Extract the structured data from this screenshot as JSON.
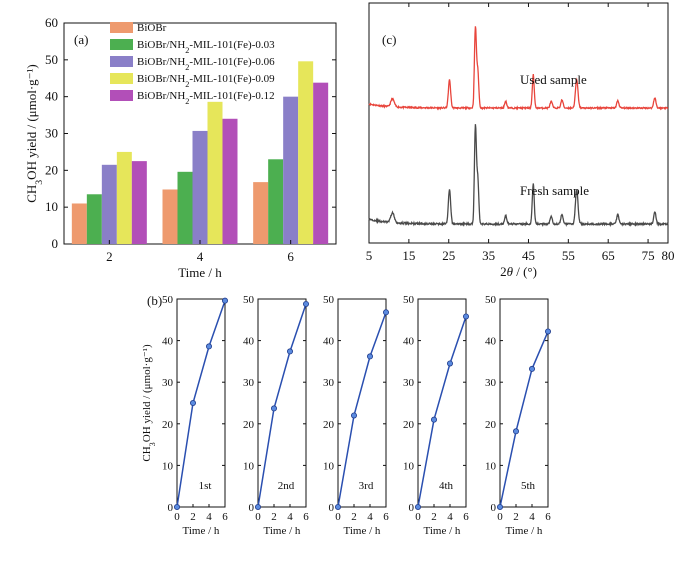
{
  "chart_data": [
    {
      "panel": "(a)",
      "type": "bar",
      "categories": [
        "2",
        "4",
        "6"
      ],
      "xlabel": "Time / h",
      "ylabel": "CH3OH yield / (μmol·g⁻¹)",
      "ylim": [
        0,
        60
      ],
      "yticks": [
        0,
        10,
        20,
        30,
        40,
        50,
        60
      ],
      "legend_position": "top-left",
      "series": [
        {
          "name": "BiOBr",
          "color": "#EE9A6E",
          "values": [
            11.0,
            14.8,
            16.8
          ]
        },
        {
          "name": "BiOBr/NH2-MIL-101(Fe)-0.03",
          "color": "#4CAF50",
          "values": [
            13.5,
            19.6,
            23.0
          ]
        },
        {
          "name": "BiOBr/NH2-MIL-101(Fe)-0.06",
          "color": "#8A7FC8",
          "values": [
            21.5,
            30.7,
            40.0
          ]
        },
        {
          "name": "BiOBr/NH2-MIL-101(Fe)-0.09",
          "color": "#E6E65A",
          "values": [
            25.0,
            38.6,
            49.6
          ]
        },
        {
          "name": "BiOBr/NH2-MIL-101(Fe)-0.12",
          "color": "#B24FB8",
          "values": [
            22.5,
            34.0,
            43.8
          ]
        }
      ]
    },
    {
      "panel": "(b)",
      "type": "line",
      "ylabel": "CH3OH yield / (μmol·g⁻¹)",
      "xlabel": "Time / h",
      "ylim": [
        0,
        50
      ],
      "xlim": [
        0,
        6
      ],
      "yticks": [
        0,
        10,
        20,
        30,
        40,
        50
      ],
      "xticks": [
        0,
        2,
        4,
        6
      ],
      "color": "#2A4FB0",
      "cycles": [
        {
          "label": "1st",
          "x": [
            0,
            2,
            4,
            6
          ],
          "y": [
            0,
            25.0,
            38.6,
            49.6
          ]
        },
        {
          "label": "2nd",
          "x": [
            0,
            2,
            4,
            6
          ],
          "y": [
            0,
            23.7,
            37.4,
            48.8
          ]
        },
        {
          "label": "3rd",
          "x": [
            0,
            2,
            4,
            6
          ],
          "y": [
            0,
            22.0,
            36.2,
            46.8
          ]
        },
        {
          "label": "4th",
          "x": [
            0,
            2,
            4,
            6
          ],
          "y": [
            0,
            21.0,
            34.5,
            45.8
          ]
        },
        {
          "label": "5th",
          "x": [
            0,
            2,
            4,
            6
          ],
          "y": [
            0,
            18.2,
            33.2,
            42.2
          ]
        }
      ]
    },
    {
      "panel": "(c)",
      "type": "line",
      "xlabel": "2θ / (°)",
      "xlim": [
        5,
        80
      ],
      "xticks": [
        5,
        15,
        25,
        35,
        45,
        55,
        65,
        75,
        80
      ],
      "grid": false,
      "peaks": [
        {
          "pos": 10.9,
          "h": 0.1,
          "w": 0.6
        },
        {
          "pos": 25.2,
          "h": 0.35,
          "w": 0.4
        },
        {
          "pos": 31.7,
          "h": 1.0,
          "w": 0.35
        },
        {
          "pos": 32.3,
          "h": 0.45,
          "w": 0.35
        },
        {
          "pos": 39.3,
          "h": 0.08,
          "w": 0.4
        },
        {
          "pos": 46.2,
          "h": 0.42,
          "w": 0.35
        },
        {
          "pos": 50.7,
          "h": 0.08,
          "w": 0.4
        },
        {
          "pos": 53.4,
          "h": 0.1,
          "w": 0.4
        },
        {
          "pos": 57.1,
          "h": 0.35,
          "w": 0.45
        },
        {
          "pos": 67.4,
          "h": 0.09,
          "w": 0.4
        },
        {
          "pos": 76.7,
          "h": 0.13,
          "w": 0.4
        }
      ],
      "series": [
        {
          "name": "Used sample",
          "color": "#E8453C"
        },
        {
          "name": "Fresh sample",
          "color": "#4A4A4A"
        }
      ]
    }
  ]
}
